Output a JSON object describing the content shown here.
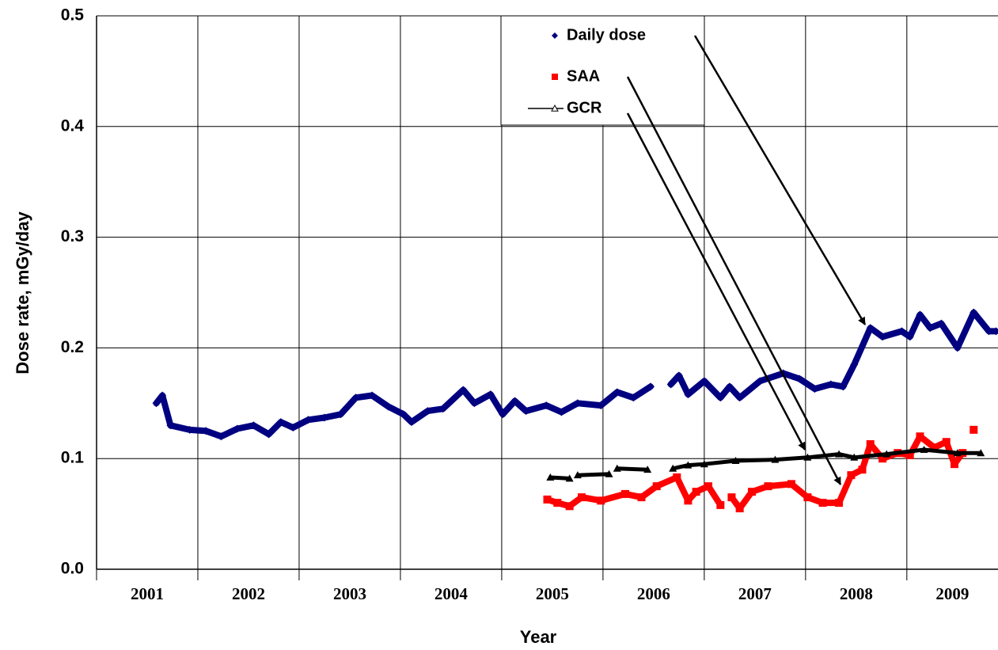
{
  "chart_data": {
    "type": "line",
    "y_label": "Dose rate, mGy/day",
    "x_label": "Year",
    "xlim": [
      2001,
      2009.9
    ],
    "xticks": [
      2001,
      2002,
      2003,
      2004,
      2005,
      2006,
      2007,
      2008,
      2009
    ],
    "ylim": [
      0,
      0.5
    ],
    "yticks": [
      {
        "value": 0,
        "label": "0.0"
      },
      0.1,
      0.2,
      0.3,
      0.4,
      0.5
    ],
    "grid": true,
    "series": [
      {
        "name": "Daily dose",
        "color": "#000080",
        "marker": "diamond",
        "x": [
          2001.59,
          2001.65,
          2001.73,
          2001.92,
          2002.08,
          2002.23,
          2002.39,
          2002.55,
          2002.7,
          2002.82,
          2002.94,
          2003.09,
          2003.25,
          2003.41,
          2003.56,
          2003.72,
          2003.88,
          2004.03,
          2004.11,
          2004.27,
          2004.42,
          2004.62,
          2004.73,
          2004.89,
          2005.01,
          2005.13,
          2005.24,
          2005.44,
          2005.59,
          2005.75,
          2005.98,
          2006.14,
          2006.3,
          2006.47,
          2006.57,
          2006.67,
          2006.75,
          2006.84,
          2007.0,
          2007.16,
          2007.25,
          2007.35,
          2007.55,
          2007.78,
          2007.94,
          2008.09,
          2008.25,
          2008.37,
          2008.48,
          2008.64,
          2008.76,
          2008.95,
          2009.03,
          2009.13,
          2009.23,
          2009.34,
          2009.5,
          2009.66,
          2009.81,
          2009.88
        ],
        "values": [
          0.15,
          0.157,
          0.13,
          0.126,
          0.125,
          0.12,
          0.127,
          0.13,
          0.122,
          0.133,
          0.128,
          0.135,
          0.137,
          0.14,
          0.155,
          0.157,
          0.147,
          0.14,
          0.133,
          0.143,
          0.145,
          0.162,
          0.15,
          0.158,
          0.14,
          0.152,
          0.143,
          0.148,
          0.142,
          0.15,
          0.148,
          0.16,
          0.155,
          0.165,
          null,
          0.167,
          0.175,
          0.158,
          0.17,
          0.155,
          0.165,
          0.155,
          0.17,
          0.177,
          0.172,
          0.163,
          0.167,
          0.165,
          0.185,
          0.218,
          0.21,
          0.215,
          0.21,
          0.23,
          0.218,
          0.222,
          0.2,
          0.232,
          0.215,
          0.215
        ]
      },
      {
        "name": "SAA",
        "color": "#ff0000",
        "marker": "square",
        "x": [
          2005.45,
          2005.55,
          2005.67,
          2005.79,
          2005.98,
          2006.22,
          2006.38,
          2006.53,
          2006.73,
          2006.84,
          2006.92,
          2007.04,
          2007.16,
          2007.21,
          2007.27,
          2007.35,
          2007.47,
          2007.63,
          2007.86,
          2008.02,
          2008.17,
          2008.33,
          2008.45,
          2008.56,
          2008.64,
          2008.76,
          2008.91,
          2009.03,
          2009.13,
          2009.27,
          2009.39,
          2009.47,
          2009.55,
          2009.6,
          2009.66
        ],
        "values": [
          0.063,
          0.06,
          0.057,
          0.065,
          0.062,
          0.068,
          0.065,
          0.075,
          0.083,
          0.062,
          0.07,
          0.075,
          0.058,
          null,
          0.065,
          0.055,
          0.07,
          0.075,
          0.077,
          0.065,
          0.06,
          0.06,
          0.085,
          0.09,
          0.113,
          0.1,
          0.105,
          0.103,
          0.12,
          0.11,
          0.115,
          0.095,
          0.105,
          null,
          0.126
        ]
      },
      {
        "name": "GCR",
        "color": "#000000",
        "marker": "triangle",
        "x": [
          2005.48,
          2005.67,
          2005.71,
          2005.75,
          2006.06,
          2006.1,
          2006.14,
          2006.44,
          2006.56,
          2006.69,
          2006.84,
          2007.0,
          2007.31,
          2007.7,
          2008.02,
          2008.33,
          2008.48,
          2008.8,
          2009.17,
          2009.5,
          2009.73
        ],
        "values": [
          0.083,
          0.082,
          null,
          0.085,
          0.086,
          null,
          0.091,
          0.09,
          null,
          0.091,
          0.094,
          0.095,
          0.098,
          0.099,
          0.101,
          0.104,
          0.101,
          0.104,
          0.108,
          0.105,
          0.105
        ]
      }
    ]
  }
}
